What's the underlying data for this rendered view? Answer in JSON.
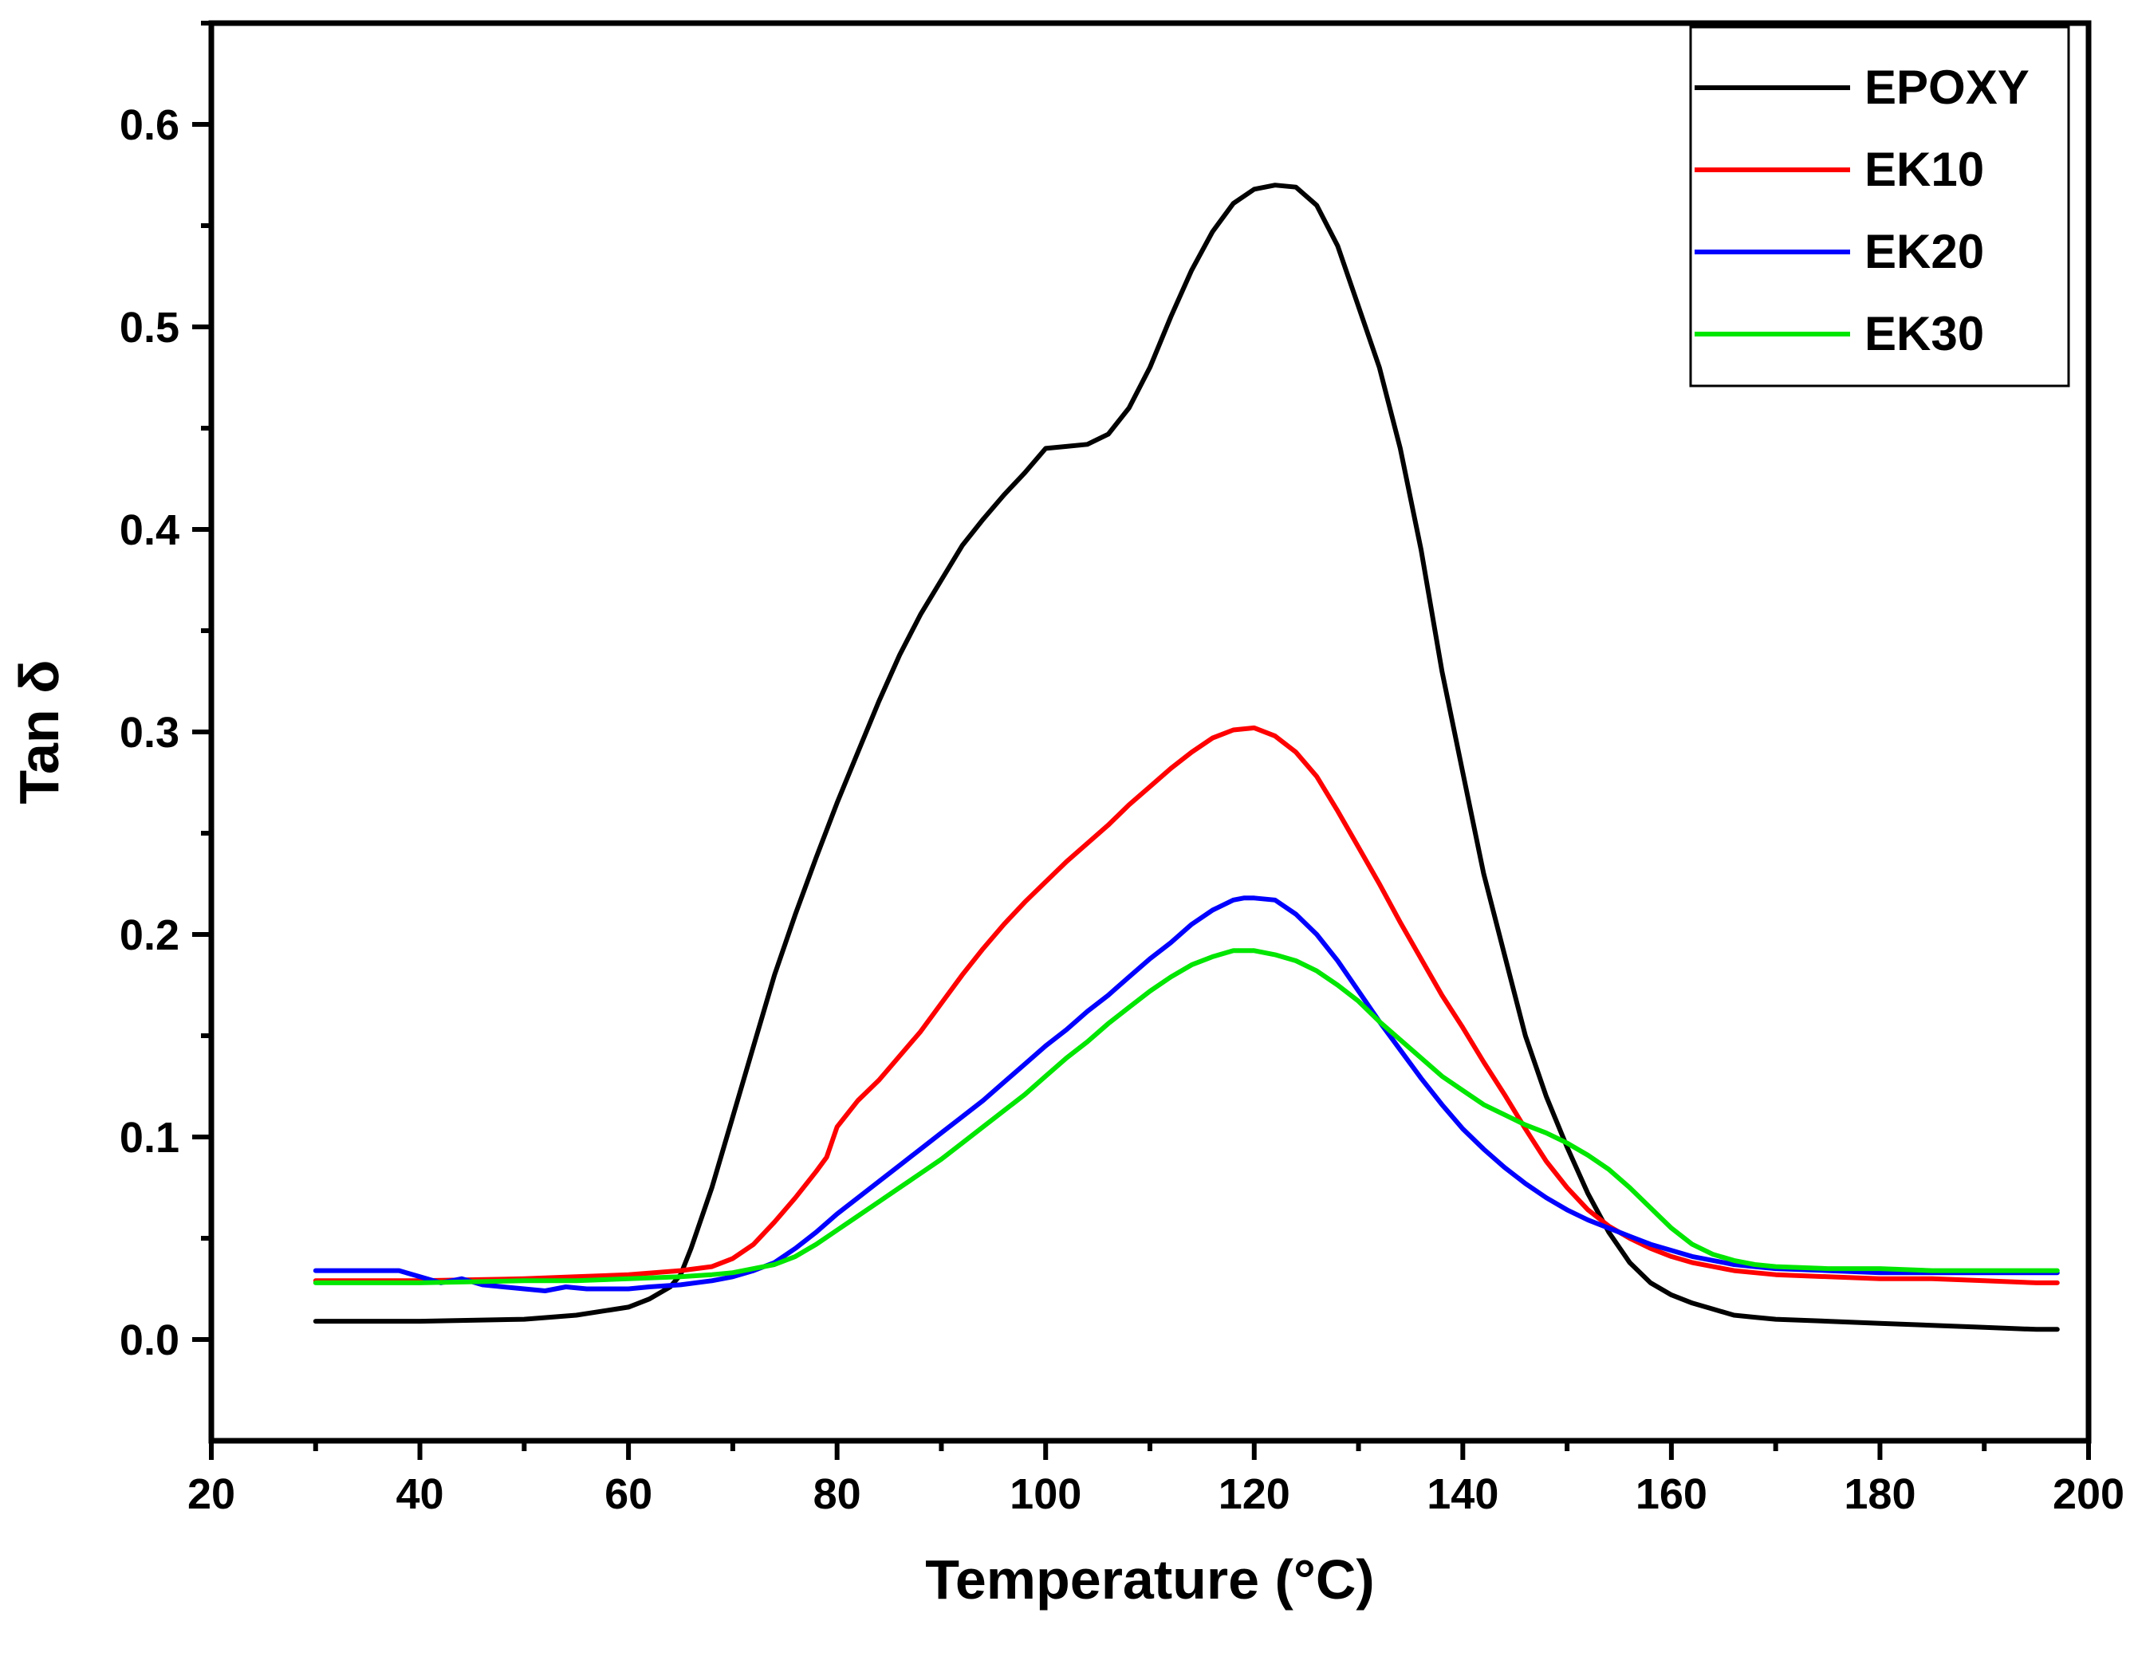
{
  "chart_data": {
    "type": "line",
    "title": "",
    "xlabel": "Temperature (°C)",
    "ylabel": "Tan δ",
    "xlim": [
      20,
      200
    ],
    "ylim": [
      -0.05,
      0.65
    ],
    "xticks": [
      20,
      40,
      60,
      80,
      100,
      120,
      140,
      160,
      180,
      200
    ],
    "xtick_labels": [
      "20",
      "40",
      "60",
      "80",
      "100",
      "120",
      "140",
      "160",
      "180",
      "200"
    ],
    "yticks": [
      0.0,
      0.1,
      0.2,
      0.3,
      0.4,
      0.5,
      0.6
    ],
    "ytick_labels": [
      "0.0",
      "0.1",
      "0.2",
      "0.3",
      "0.4",
      "0.5",
      "0.6"
    ],
    "grid": false,
    "legend_position": "top-right",
    "series": [
      {
        "name": "EPOXY",
        "color": "#000000",
        "x": [
          30,
          40,
          50,
          55,
          60,
          62,
          64,
          65,
          66,
          68,
          70,
          72,
          74,
          76,
          78,
          80,
          82,
          84,
          86,
          88,
          90,
          92,
          94,
          96,
          98,
          100,
          102,
          104,
          106,
          108,
          110,
          112,
          114,
          116,
          118,
          120,
          122,
          124,
          126,
          128,
          130,
          132,
          134,
          136,
          138,
          140,
          142,
          144,
          146,
          148,
          150,
          152,
          154,
          156,
          158,
          160,
          162,
          164,
          166,
          168,
          170,
          175,
          180,
          185,
          190,
          195,
          197
        ],
        "y": [
          0.009,
          0.009,
          0.01,
          0.012,
          0.016,
          0.02,
          0.026,
          0.032,
          0.045,
          0.075,
          0.11,
          0.145,
          0.18,
          0.21,
          0.238,
          0.265,
          0.29,
          0.315,
          0.338,
          0.358,
          0.375,
          0.392,
          0.405,
          0.417,
          0.428,
          0.44,
          0.441,
          0.442,
          0.447,
          0.46,
          0.48,
          0.505,
          0.528,
          0.547,
          0.561,
          0.568,
          0.57,
          0.569,
          0.56,
          0.54,
          0.51,
          0.48,
          0.44,
          0.39,
          0.33,
          0.28,
          0.23,
          0.19,
          0.15,
          0.12,
          0.095,
          0.072,
          0.053,
          0.038,
          0.028,
          0.022,
          0.018,
          0.015,
          0.012,
          0.011,
          0.01,
          0.009,
          0.008,
          0.007,
          0.006,
          0.005,
          0.005
        ]
      },
      {
        "name": "EK10",
        "color": "#ff0000",
        "x": [
          30,
          40,
          50,
          55,
          60,
          65,
          68,
          70,
          72,
          74,
          76,
          78,
          79,
          80,
          82,
          84,
          86,
          88,
          90,
          92,
          94,
          96,
          98,
          100,
          102,
          104,
          106,
          108,
          110,
          112,
          114,
          116,
          118,
          120,
          122,
          124,
          126,
          128,
          130,
          132,
          134,
          136,
          138,
          140,
          142,
          144,
          146,
          148,
          150,
          152,
          154,
          156,
          158,
          160,
          162,
          164,
          166,
          168,
          170,
          175,
          180,
          185,
          190,
          195,
          197
        ],
        "y": [
          0.029,
          0.029,
          0.03,
          0.031,
          0.032,
          0.034,
          0.036,
          0.04,
          0.047,
          0.058,
          0.07,
          0.083,
          0.09,
          0.105,
          0.118,
          0.128,
          0.14,
          0.152,
          0.166,
          0.18,
          0.193,
          0.205,
          0.216,
          0.226,
          0.236,
          0.245,
          0.254,
          0.264,
          0.273,
          0.282,
          0.29,
          0.297,
          0.301,
          0.302,
          0.298,
          0.29,
          0.278,
          0.261,
          0.243,
          0.225,
          0.206,
          0.188,
          0.17,
          0.154,
          0.137,
          0.121,
          0.104,
          0.088,
          0.075,
          0.064,
          0.056,
          0.05,
          0.045,
          0.041,
          0.038,
          0.036,
          0.034,
          0.033,
          0.032,
          0.031,
          0.03,
          0.03,
          0.029,
          0.028,
          0.028
        ]
      },
      {
        "name": "EK20",
        "color": "#0000ff",
        "x": [
          30,
          35,
          38,
          40,
          42,
          44,
          46,
          48,
          50,
          52,
          54,
          56,
          58,
          60,
          62,
          65,
          68,
          70,
          72,
          74,
          76,
          78,
          80,
          82,
          84,
          86,
          88,
          90,
          92,
          94,
          96,
          98,
          100,
          102,
          104,
          106,
          108,
          110,
          112,
          114,
          116,
          118,
          119,
          120,
          122,
          124,
          126,
          128,
          130,
          132,
          134,
          136,
          138,
          140,
          142,
          144,
          146,
          148,
          150,
          152,
          154,
          156,
          158,
          160,
          162,
          164,
          166,
          168,
          170,
          175,
          180,
          185,
          190,
          195,
          197
        ],
        "y": [
          0.034,
          0.034,
          0.034,
          0.031,
          0.028,
          0.03,
          0.027,
          0.026,
          0.025,
          0.024,
          0.026,
          0.025,
          0.025,
          0.025,
          0.026,
          0.027,
          0.029,
          0.031,
          0.034,
          0.038,
          0.045,
          0.053,
          0.062,
          0.07,
          0.078,
          0.086,
          0.094,
          0.102,
          0.11,
          0.118,
          0.127,
          0.136,
          0.145,
          0.153,
          0.162,
          0.17,
          0.179,
          0.188,
          0.196,
          0.205,
          0.212,
          0.217,
          0.218,
          0.218,
          0.217,
          0.21,
          0.2,
          0.187,
          0.172,
          0.157,
          0.143,
          0.129,
          0.116,
          0.104,
          0.094,
          0.085,
          0.077,
          0.07,
          0.064,
          0.059,
          0.055,
          0.051,
          0.047,
          0.044,
          0.041,
          0.039,
          0.037,
          0.036,
          0.035,
          0.034,
          0.033,
          0.033,
          0.033,
          0.033,
          0.033
        ]
      },
      {
        "name": "EK30",
        "color": "#00e600",
        "x": [
          30,
          40,
          50,
          55,
          60,
          65,
          68,
          70,
          72,
          74,
          76,
          78,
          80,
          82,
          84,
          86,
          88,
          90,
          92,
          94,
          96,
          98,
          100,
          102,
          104,
          106,
          108,
          110,
          112,
          114,
          116,
          118,
          120,
          122,
          124,
          126,
          128,
          130,
          132,
          134,
          136,
          138,
          140,
          142,
          144,
          146,
          148,
          150,
          152,
          154,
          156,
          158,
          160,
          162,
          164,
          166,
          168,
          170,
          175,
          180,
          185,
          190,
          195,
          197
        ],
        "y": [
          0.028,
          0.028,
          0.029,
          0.029,
          0.03,
          0.031,
          0.032,
          0.033,
          0.035,
          0.037,
          0.041,
          0.047,
          0.054,
          0.061,
          0.068,
          0.075,
          0.082,
          0.089,
          0.097,
          0.105,
          0.113,
          0.121,
          0.13,
          0.139,
          0.147,
          0.156,
          0.164,
          0.172,
          0.179,
          0.185,
          0.189,
          0.192,
          0.192,
          0.19,
          0.187,
          0.182,
          0.175,
          0.167,
          0.157,
          0.148,
          0.139,
          0.13,
          0.123,
          0.116,
          0.111,
          0.106,
          0.102,
          0.097,
          0.091,
          0.084,
          0.075,
          0.065,
          0.055,
          0.047,
          0.042,
          0.039,
          0.037,
          0.036,
          0.035,
          0.035,
          0.034,
          0.034,
          0.034,
          0.034
        ]
      }
    ]
  }
}
